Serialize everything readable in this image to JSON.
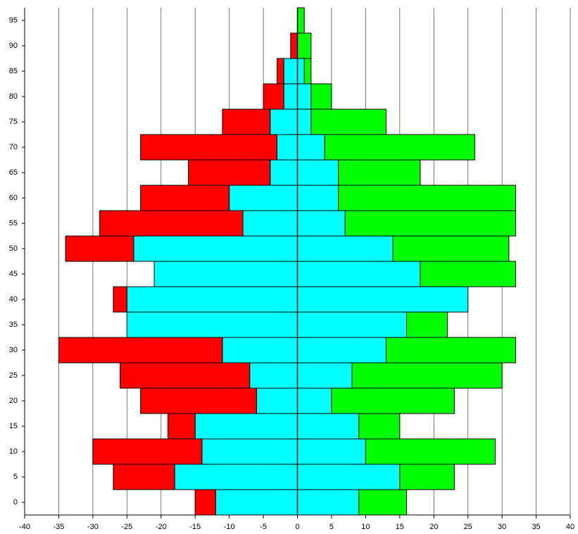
{
  "chart_data": {
    "type": "bar",
    "orientation": "horizontal",
    "stacked": true,
    "categories": [
      "0",
      "5",
      "10",
      "15",
      "20",
      "25",
      "30",
      "35",
      "40",
      "45",
      "50",
      "55",
      "60",
      "65",
      "70",
      "75",
      "80",
      "85",
      "90",
      "95"
    ],
    "series": [
      {
        "color": "#00ffff",
        "values": [
          -12,
          -18,
          -14,
          -15,
          -6,
          -7,
          -11,
          -25,
          -25,
          -21,
          -24,
          -8,
          -10,
          -4,
          -3,
          -4,
          -2,
          -2,
          0,
          0
        ]
      },
      {
        "color": "#ff0000",
        "values": [
          -3,
          -9,
          -16,
          -4,
          -17,
          -19,
          -24,
          0,
          -2,
          0,
          -10,
          -21,
          -13,
          -12,
          -20,
          -7,
          -3,
          -1,
          -1,
          0
        ]
      },
      {
        "color": "#00ffff",
        "values": [
          9,
          15,
          10,
          9,
          5,
          8,
          13,
          16,
          25,
          18,
          14,
          7,
          6,
          6,
          4,
          2,
          2,
          1,
          0,
          0
        ]
      },
      {
        "color": "#00ff00",
        "values": [
          7,
          8,
          19,
          6,
          18,
          22,
          19,
          6,
          0,
          14,
          17,
          25,
          26,
          12,
          22,
          11,
          3,
          1,
          2,
          1
        ]
      }
    ],
    "xlim": [
      -40,
      40
    ],
    "xticks": [
      -40,
      -35,
      -30,
      -25,
      -20,
      -15,
      -10,
      -5,
      0,
      5,
      10,
      15,
      20,
      25,
      30,
      35,
      40
    ],
    "grid": true
  }
}
